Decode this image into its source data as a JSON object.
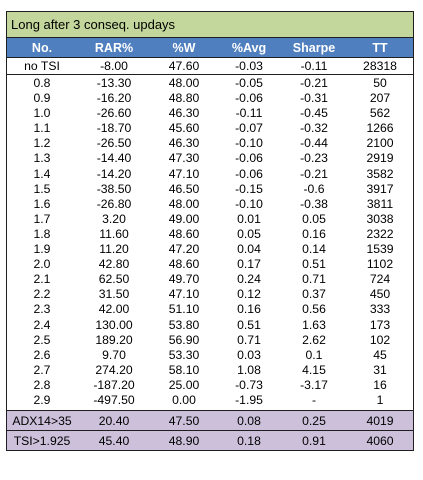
{
  "title": "Long after 3 conseq. updays",
  "columns": [
    "No.",
    "RAR%",
    "%W",
    "%Avg",
    "Sharpe",
    "TT"
  ],
  "baseline": [
    "no TSI",
    "-8.00",
    "47.60",
    "-0.03",
    "-0.11",
    "28318"
  ],
  "rows": [
    [
      "0.8",
      "-13.30",
      "48.00",
      "-0.05",
      "-0.21",
      "50"
    ],
    [
      "0.9",
      "-16.20",
      "48.80",
      "-0.06",
      "-0.31",
      "207"
    ],
    [
      "1.0",
      "-26.60",
      "46.30",
      "-0.11",
      "-0.45",
      "562"
    ],
    [
      "1.1",
      "-18.70",
      "45.60",
      "-0.07",
      "-0.32",
      "1266"
    ],
    [
      "1.2",
      "-26.50",
      "46.30",
      "-0.10",
      "-0.44",
      "2100"
    ],
    [
      "1.3",
      "-14.40",
      "47.30",
      "-0.06",
      "-0.23",
      "2919"
    ],
    [
      "1.4",
      "-14.20",
      "47.10",
      "-0.06",
      "-0.21",
      "3582"
    ],
    [
      "1.5",
      "-38.50",
      "46.50",
      "-0.15",
      "-0.6",
      "3917"
    ],
    [
      "1.6",
      "-26.80",
      "48.00",
      "-0.10",
      "-0.38",
      "3811"
    ],
    [
      "1.7",
      "3.20",
      "49.00",
      "0.01",
      "0.05",
      "3038"
    ],
    [
      "1.8",
      "11.60",
      "48.60",
      "0.05",
      "0.16",
      "2322"
    ],
    [
      "1.9",
      "11.20",
      "47.20",
      "0.04",
      "0.14",
      "1539"
    ],
    [
      "2.0",
      "42.80",
      "48.60",
      "0.17",
      "0.51",
      "1102"
    ],
    [
      "2.1",
      "62.50",
      "49.70",
      "0.24",
      "0.71",
      "724"
    ],
    [
      "2.2",
      "31.50",
      "47.10",
      "0.12",
      "0.37",
      "450"
    ],
    [
      "2.3",
      "42.00",
      "51.10",
      "0.16",
      "0.56",
      "333"
    ],
    [
      "2.4",
      "130.00",
      "53.80",
      "0.51",
      "1.63",
      "173"
    ],
    [
      "2.5",
      "189.20",
      "56.90",
      "0.71",
      "2.62",
      "102"
    ],
    [
      "2.6",
      "9.70",
      "53.30",
      "0.03",
      "0.1",
      "45"
    ],
    [
      "2.7",
      "274.20",
      "58.10",
      "1.08",
      "4.15",
      "31"
    ],
    [
      "2.8",
      "-187.20",
      "25.00",
      "-0.73",
      "-3.17",
      "16"
    ],
    [
      "2.9",
      "-497.50",
      "0.00",
      "-1.95",
      "-",
      "1"
    ]
  ],
  "summary": [
    [
      "ADX14>35",
      "20.40",
      "47.50",
      "0.08",
      "0.25",
      "4019"
    ],
    [
      "TSI>1.925",
      "45.40",
      "48.90",
      "0.18",
      "0.91",
      "4060"
    ]
  ],
  "colors": {
    "title_bg": "#c3d69b",
    "header_bg": "#4f7fbf",
    "summary_bg": "#ccc0da"
  }
}
